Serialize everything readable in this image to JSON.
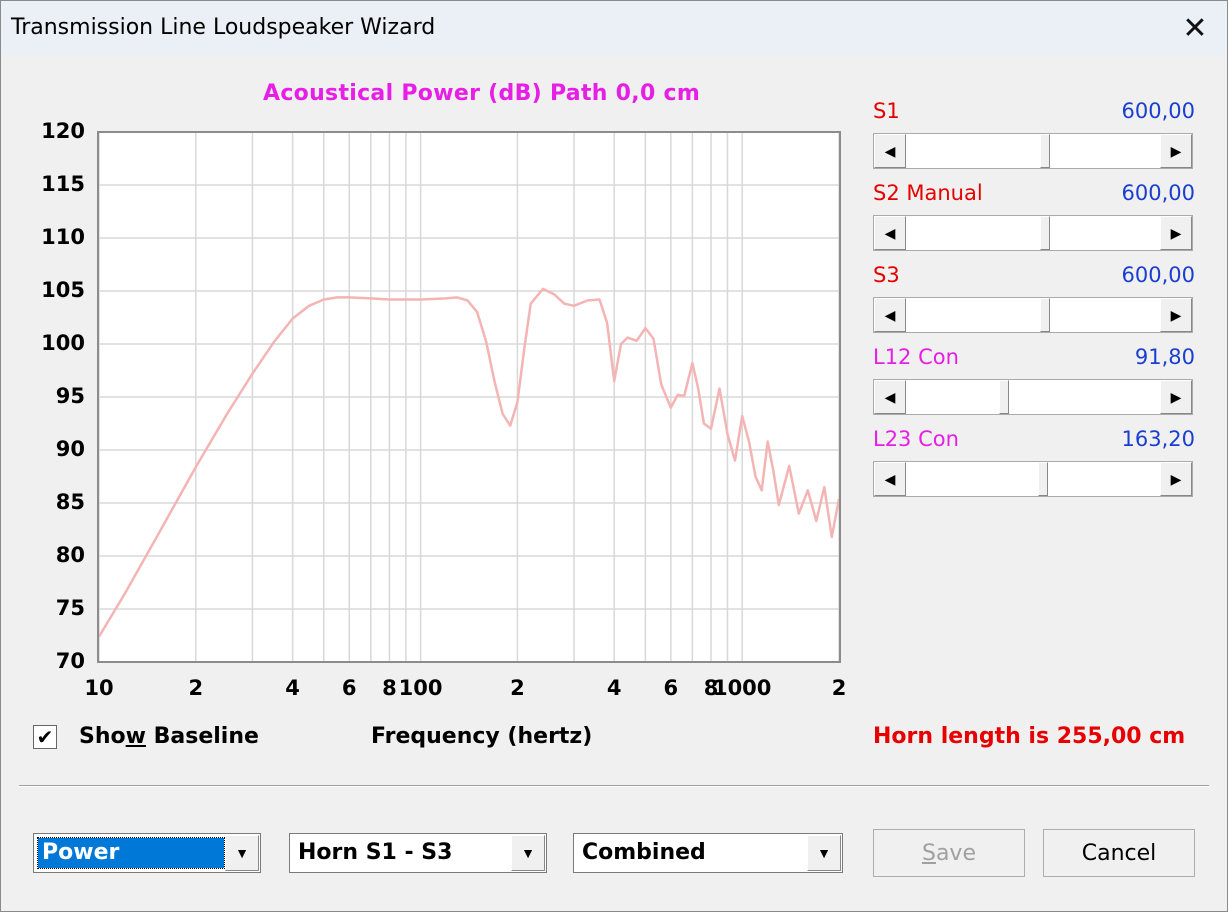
{
  "window": {
    "title": "Transmission Line Loudspeaker Wizard",
    "close_glyph": "✕"
  },
  "chart": {
    "title": "Acoustical Power (dB)   Path 0,0 cm",
    "xlabel": "Frequency (hertz)"
  },
  "chart_data": {
    "type": "line",
    "title": "Acoustical Power (dB)   Path 0,0 cm",
    "xlabel": "Frequency (hertz)",
    "ylabel": "",
    "xscale": "log",
    "xlim": [
      10,
      2000
    ],
    "ylim": [
      70,
      120
    ],
    "grid": true,
    "y_ticks": [
      "120",
      "115",
      "110",
      "105",
      "100",
      "95",
      "90",
      "85",
      "80",
      "75",
      "70"
    ],
    "x_ticks": [
      {
        "value": 10,
        "label": "10"
      },
      {
        "value": 20,
        "label": "2"
      },
      {
        "value": 40,
        "label": "4"
      },
      {
        "value": 60,
        "label": "6"
      },
      {
        "value": 80,
        "label": "8"
      },
      {
        "value": 100,
        "label": "100"
      },
      {
        "value": 200,
        "label": "2"
      },
      {
        "value": 400,
        "label": "4"
      },
      {
        "value": 600,
        "label": "6"
      },
      {
        "value": 800,
        "label": "8"
      },
      {
        "value": 1000,
        "label": "1000"
      },
      {
        "value": 2000,
        "label": "2"
      }
    ],
    "line_color": "#f5b4b4",
    "series": [
      {
        "x": [
          10,
          12,
          15,
          20,
          25,
          30,
          35,
          40,
          45,
          50,
          55,
          60,
          70,
          80,
          100,
          120,
          130,
          140,
          150,
          160,
          170,
          180,
          190,
          200,
          210,
          220,
          240,
          260,
          280,
          300,
          330,
          360,
          380,
          400,
          420,
          440,
          470,
          500,
          530,
          560,
          600,
          630,
          660,
          700,
          730,
          760,
          800,
          850,
          900,
          950,
          1000,
          1050,
          1100,
          1150,
          1200,
          1250,
          1300,
          1400,
          1500,
          1600,
          1700,
          1800,
          1900,
          2000
        ],
        "y": [
          72.4,
          76.4,
          81.6,
          88.4,
          93.4,
          97.2,
          100.2,
          102.4,
          103.6,
          104.2,
          104.4,
          104.4,
          104.3,
          104.2,
          104.2,
          104.3,
          104.4,
          104.1,
          103.0,
          100.2,
          96.4,
          93.4,
          92.3,
          94.5,
          99.5,
          103.8,
          105.2,
          104.7,
          103.8,
          103.6,
          104.1,
          104.2,
          102.0,
          96.5,
          100.0,
          100.6,
          100.3,
          101.5,
          100.5,
          96.2,
          94.0,
          95.2,
          95.1,
          98.2,
          95.8,
          92.5,
          92.0,
          95.8,
          91.5,
          89.0,
          93.2,
          90.8,
          87.5,
          86.2,
          90.8,
          88.0,
          84.8,
          88.5,
          84.0,
          86.2,
          83.3,
          86.5,
          81.8,
          85.4
        ]
      }
    ]
  },
  "sliders": [
    {
      "name": "S1",
      "value": "600,00",
      "label_color": "#e60000",
      "fraction": 0.55
    },
    {
      "name": "S2  Manual",
      "value": "600,00",
      "label_color": "#e60000",
      "fraction": 0.55
    },
    {
      "name": "S3",
      "value": "600,00",
      "label_color": "#e60000",
      "fraction": 0.55
    },
    {
      "name": "L12  Con",
      "value": "91,80",
      "label_color": "#e61ee6",
      "fraction": 0.38
    },
    {
      "name": "L23  Con",
      "value": "163,20",
      "label_color": "#e61ee6",
      "fraction": 0.54
    }
  ],
  "show_baseline": {
    "pre": "Sho",
    "u": "w",
    "post": " Baseline",
    "checked_glyph": "✔"
  },
  "horn_length": "Horn length is 255,00 cm",
  "combos": {
    "mode": {
      "value": "Power"
    },
    "horn": {
      "value": "Horn S1 - S3"
    },
    "combine": {
      "value": "Combined"
    },
    "arrow_glyph": "▼"
  },
  "buttons": {
    "save_u": "S",
    "save_rest": "ave",
    "cancel": "Cancel"
  },
  "icons": {
    "left": "◀",
    "right": "▶"
  },
  "colors": {
    "value_blue": "#1a3fd0",
    "title_magenta": "#e61ee6",
    "warning_red": "#e60000"
  }
}
